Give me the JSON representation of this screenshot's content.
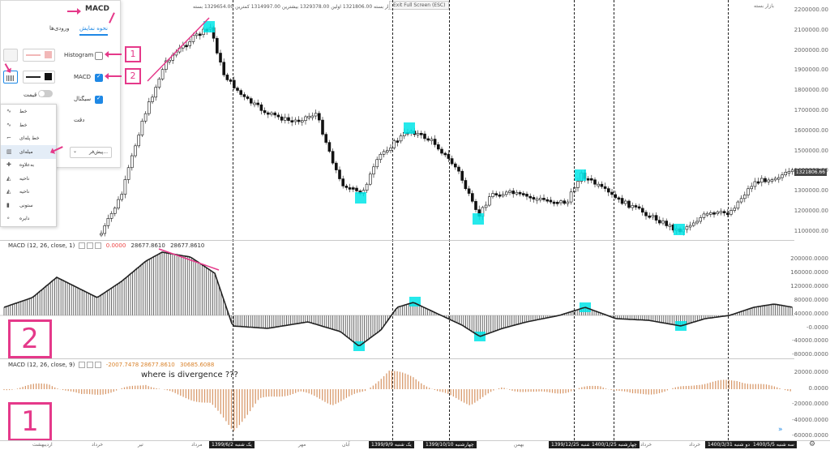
{
  "header": {
    "price_info": "بازار بسته 1321806.00 اولین 1329378.00 بیشترین 1314997.00 کمترین 1329654.00 بسته",
    "exit_button": "Exit Full Screen (ESC)",
    "market_status": "بازار بسته"
  },
  "panel": {
    "title": "MACD",
    "tabs": [
      "نحوه نمایش",
      "ورودی‌ها"
    ],
    "active_tab": "نحوه نمایش",
    "rows": [
      {
        "label": "Histogram",
        "checked": false
      },
      {
        "label": "MACD",
        "checked": true
      },
      {
        "label": "سیگنال",
        "checked": true
      }
    ],
    "price_line_label": "خط قیمت",
    "precision_label": "دقت",
    "default_value": "پیش‌فر...",
    "annotations": [
      "1",
      "2"
    ]
  },
  "style_list": [
    {
      "label": "خط",
      "icon": "line-icon"
    },
    {
      "label": "خط",
      "icon": "line-break-icon"
    },
    {
      "label": "خط پله‌ای",
      "icon": "step-line-icon"
    },
    {
      "label": "میله‌ای",
      "icon": "histogram-icon",
      "selected": true
    },
    {
      "label": "به‌علاوه",
      "icon": "cross-icon"
    },
    {
      "label": "ناحیه",
      "icon": "area-icon"
    },
    {
      "label": "ناحیه",
      "icon": "area-break-icon"
    },
    {
      "label": "ستونی",
      "icon": "columns-icon"
    },
    {
      "label": "دایره",
      "icon": "circles-icon"
    }
  ],
  "price_axis": [
    "2200000.00",
    "2100000.00",
    "2000000.00",
    "1900000.00",
    "1800000.00",
    "1700000.00",
    "1600000.00",
    "1500000.00",
    "1400000.00",
    "1300000.00",
    "1200000.00",
    "1100000.00"
  ],
  "last_price": "1321806.66",
  "macd1": {
    "legend_title": "MACD (12, 26, close, 1)",
    "legend_values": [
      "0.0000",
      "28677.8610",
      "28677.8610"
    ],
    "axis": [
      "200000.0000",
      "160000.0000",
      "120000.0000",
      "80000.0000",
      "40000.0000",
      "-0.0000",
      "-40000.0000",
      "-80000.0000"
    ],
    "big_label": "2"
  },
  "macd2": {
    "legend_title": "MACD (12, 26, close, 9)",
    "legend_values": [
      "-2007.7478",
      "28677.8610",
      "30685.6088"
    ],
    "axis": [
      "20000.0000",
      "0.0000",
      "-20000.0000",
      "-40000.0000",
      "-60000.0000"
    ],
    "annotation": "where is divergence ???",
    "big_label": "1"
  },
  "x_axis": {
    "labels": [
      "اردیبهشت",
      "خرداد",
      "تیر",
      "مرداد",
      "مهر",
      "آبان",
      "بهمن",
      "خرداد",
      "خرداد"
    ],
    "highlights": [
      "1399/6/2 یک شنبه",
      "1399/9/9 یک شنبه",
      "1399/10/10 چهارشنبه",
      "1399/12/25 شنبه",
      "1400/1/25 چهارشنبه",
      "1400/3/31 دو شنبه",
      "1400/5/5 سه شنبه"
    ]
  },
  "colors": {
    "accent": "#e5398a",
    "highlight": "#00e5e8",
    "macd_line": "#222222",
    "hist": "#d99a6c",
    "blue": "#1e88e5"
  }
}
